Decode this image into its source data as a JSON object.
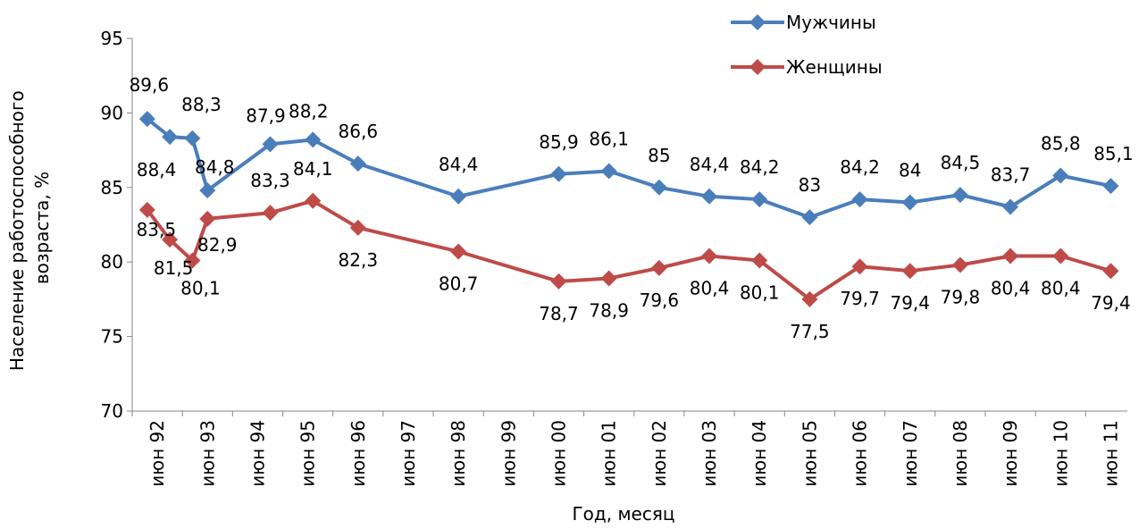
{
  "chart_data": {
    "type": "line",
    "xlabel": "Год, месяц",
    "ylabel_lines": [
      "Население работоспособного",
      "возраста, %"
    ],
    "ylim": [
      70,
      95
    ],
    "yticks": [
      70,
      75,
      80,
      85,
      90,
      95
    ],
    "x_domain": [
      1992.0,
      2011.83
    ],
    "year_ticks": [
      {
        "x": 1992.5,
        "label": "июн 92"
      },
      {
        "x": 1993.5,
        "label": "июн 93"
      },
      {
        "x": 1994.5,
        "label": "июн 94"
      },
      {
        "x": 1995.5,
        "label": "июн 95"
      },
      {
        "x": 1996.5,
        "label": "июн 96"
      },
      {
        "x": 1997.5,
        "label": "июн 97"
      },
      {
        "x": 1998.5,
        "label": "июн 98"
      },
      {
        "x": 1999.5,
        "label": "июн 99"
      },
      {
        "x": 2000.5,
        "label": "июн 00"
      },
      {
        "x": 2001.5,
        "label": "июн 01"
      },
      {
        "x": 2002.5,
        "label": "июн 02"
      },
      {
        "x": 2003.5,
        "label": "июн 03"
      },
      {
        "x": 2004.5,
        "label": "июн 04"
      },
      {
        "x": 2005.5,
        "label": "июн 05"
      },
      {
        "x": 2006.5,
        "label": "июн 06"
      },
      {
        "x": 2007.5,
        "label": "июн 07"
      },
      {
        "x": 2008.5,
        "label": "июн 08"
      },
      {
        "x": 2009.5,
        "label": "июн 09"
      },
      {
        "x": 2010.5,
        "label": "июн 10"
      },
      {
        "x": 2011.5,
        "label": "июн 11"
      }
    ],
    "legend_position": "top-right",
    "series": [
      {
        "name": "Мужчины",
        "color": "#4a7ebb",
        "x": [
          1992.3,
          1992.75,
          1993.2,
          1993.5,
          1994.75,
          1995.6,
          1996.5,
          1998.5,
          2000.5,
          2001.5,
          2002.5,
          2003.5,
          2004.5,
          2005.5,
          2006.5,
          2007.5,
          2008.5,
          2009.5,
          2010.5,
          2011.5
        ],
        "values": [
          89.6,
          88.4,
          88.3,
          84.8,
          87.9,
          88.2,
          86.6,
          84.4,
          85.9,
          86.1,
          85,
          84.4,
          84.2,
          83,
          84.2,
          84,
          84.5,
          83.7,
          85.8,
          85.1
        ],
        "labels": [
          "89,6",
          "88,4",
          "88,3",
          "84,8",
          "87,9",
          "88,2",
          "86,6",
          "84,4",
          "85,9",
          "86,1",
          "85",
          "84,4",
          "84,2",
          "83",
          "84,2",
          "84",
          "84,5",
          "83,7",
          "85,8",
          "85,1"
        ]
      },
      {
        "name": "Женщины",
        "color": "#be4b48",
        "x": [
          1992.3,
          1992.75,
          1993.2,
          1993.5,
          1994.75,
          1995.6,
          1996.5,
          1998.5,
          2000.5,
          2001.5,
          2002.5,
          2003.5,
          2004.5,
          2005.5,
          2006.5,
          2007.5,
          2008.5,
          2009.5,
          2010.5,
          2011.5
        ],
        "values": [
          83.5,
          81.5,
          80.1,
          82.9,
          83.3,
          84.1,
          82.3,
          80.7,
          78.7,
          78.9,
          79.6,
          80.4,
          80.1,
          77.5,
          79.7,
          79.4,
          79.8,
          80.4,
          80.4,
          79.4
        ],
        "labels": [
          "83,5",
          "81,5",
          "80,1",
          "82,9",
          "83,3",
          "84,1",
          "82,3",
          "80,7",
          "78,7",
          "78,9",
          "79,6",
          "80,4",
          "80,1",
          "77,5",
          "79,7",
          "79,4",
          "79,8",
          "80,4",
          "80,4",
          "79,4"
        ]
      }
    ]
  }
}
